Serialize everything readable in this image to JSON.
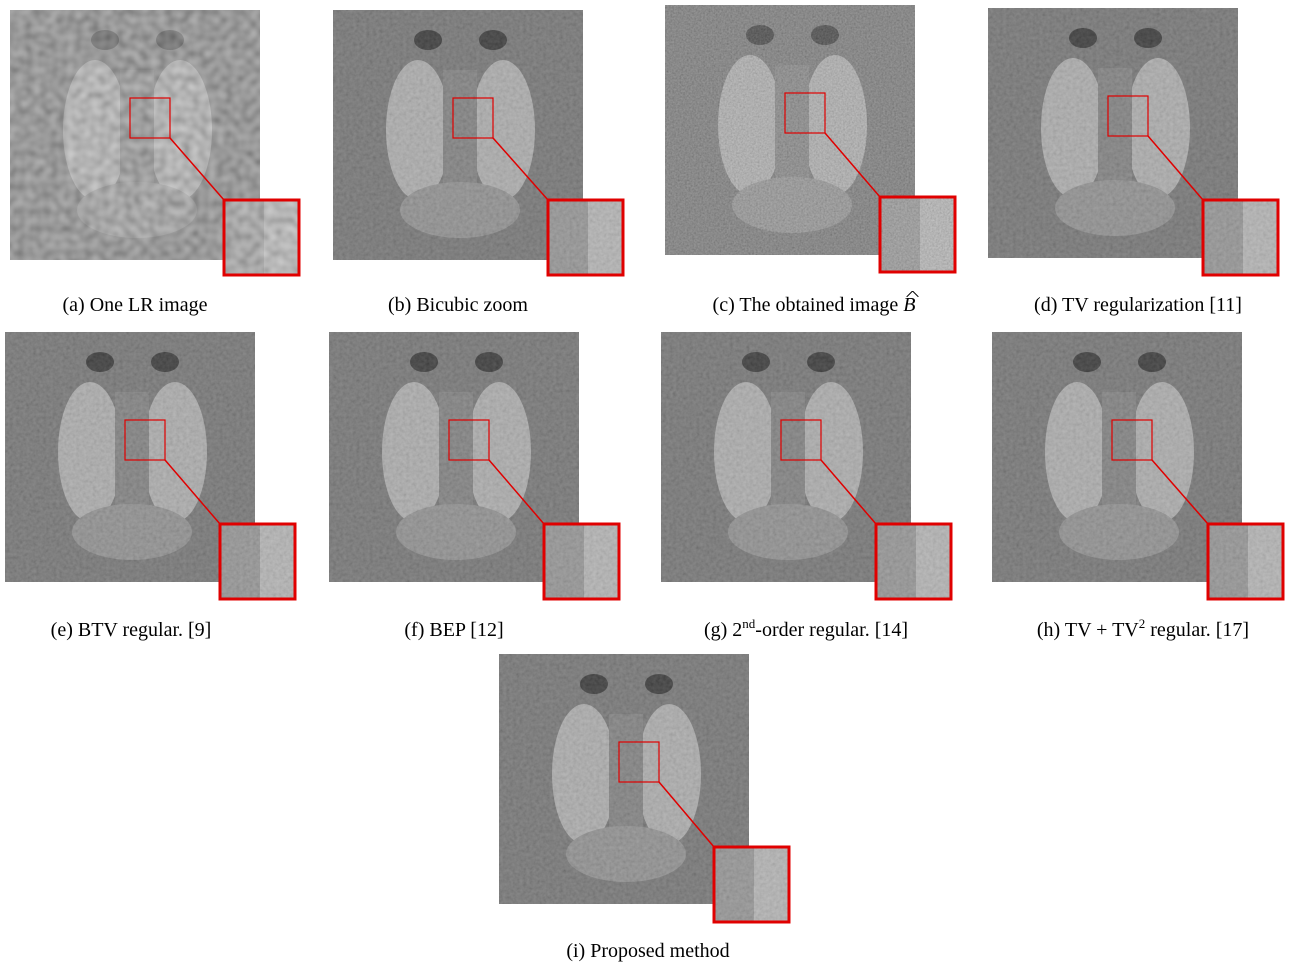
{
  "figure": {
    "captions": [
      [
        "(a) One LR image"
      ],
      [
        "(b) Bicubic zoom"
      ],
      [
        "(c) The obtained image ",
        "B"
      ],
      [
        "(d) TV regularization [11]"
      ],
      [
        "(e) BTV regular. [9]"
      ],
      [
        "(f) BEP [12]"
      ],
      [
        "(g) 2",
        "nd",
        "-order regular. [14]"
      ],
      [
        "(h) TV + TV",
        "2",
        " regular. [17]"
      ],
      [
        "(i) Proposed method"
      ]
    ]
  }
}
